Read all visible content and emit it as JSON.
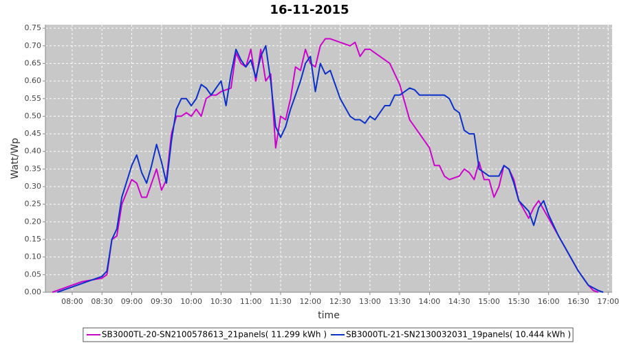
{
  "chart_data": {
    "type": "line",
    "title": "16-11-2015",
    "x_label": "time",
    "y_label": "Watt/Wp",
    "xlim": [
      "07:33",
      "17:04"
    ],
    "xticks": [
      "08:00",
      "08:30",
      "09:00",
      "09:30",
      "10:00",
      "10:30",
      "11:00",
      "11:30",
      "12:00",
      "12:30",
      "13:00",
      "13:30",
      "14:00",
      "14:30",
      "15:00",
      "15:30",
      "16:00",
      "16:30",
      "17:00"
    ],
    "ylim": [
      0,
      0.76
    ],
    "yticks": [
      {
        "value": 0,
        "label": "0.00"
      },
      {
        "value": 0.05,
        "label": "0.05"
      },
      {
        "value": 0.1,
        "label": "0.10"
      },
      {
        "value": 0.15,
        "label": "0.15"
      },
      {
        "value": 0.2,
        "label": "0.20"
      },
      {
        "value": 0.25,
        "label": "0.25"
      },
      {
        "value": 0.3,
        "label": "0.30"
      },
      {
        "value": 0.35,
        "label": "0.35"
      },
      {
        "value": 0.4,
        "label": "0.40"
      },
      {
        "value": 0.45,
        "label": "0.45"
      },
      {
        "value": 0.5,
        "label": "0.50"
      },
      {
        "value": 0.55,
        "label": "0.55"
      },
      {
        "value": 0.6,
        "label": "0.60"
      },
      {
        "value": 0.65,
        "label": "0.65"
      },
      {
        "value": 0.7,
        "label": "0.70"
      },
      {
        "value": 0.75,
        "label": "0.75"
      }
    ],
    "grid": true,
    "legend": "bottom",
    "series": [
      {
        "name": "SB3000TL-20-SN2100578613_21panels( 11.299 kWh )",
        "color": "#cc00cc",
        "x": [
          "07:40",
          "07:50",
          "08:00",
          "08:10",
          "08:20",
          "08:30",
          "08:35",
          "08:40",
          "08:45",
          "08:50",
          "09:00",
          "09:05",
          "09:10",
          "09:15",
          "09:20",
          "09:25",
          "09:30",
          "09:35",
          "09:40",
          "09:45",
          "09:50",
          "09:55",
          "10:00",
          "10:05",
          "10:10",
          "10:15",
          "10:20",
          "10:25",
          "10:30",
          "10:40",
          "10:45",
          "10:50",
          "10:55",
          "11:00",
          "11:05",
          "11:10",
          "11:15",
          "11:20",
          "11:25",
          "11:30",
          "11:35",
          "11:40",
          "11:45",
          "11:50",
          "11:55",
          "12:00",
          "12:05",
          "12:10",
          "12:15",
          "12:20",
          "12:30",
          "12:40",
          "12:45",
          "12:50",
          "12:55",
          "13:00",
          "13:10",
          "13:20",
          "13:25",
          "13:30",
          "13:40",
          "13:50",
          "14:00",
          "14:05",
          "14:10",
          "14:15",
          "14:20",
          "14:30",
          "14:35",
          "14:40",
          "14:45",
          "14:50",
          "14:55",
          "15:00",
          "15:05",
          "15:10",
          "15:15",
          "15:20",
          "15:25",
          "15:30",
          "15:40",
          "15:45",
          "15:50",
          "16:00",
          "16:10",
          "16:20",
          "16:30",
          "16:40",
          "16:45",
          "16:50"
        ],
        "values": [
          0,
          0.01,
          0.02,
          0.03,
          0.035,
          0.04,
          0.05,
          0.15,
          0.16,
          0.25,
          0.32,
          0.31,
          0.27,
          0.27,
          0.31,
          0.35,
          0.29,
          0.32,
          0.45,
          0.5,
          0.5,
          0.51,
          0.5,
          0.52,
          0.5,
          0.55,
          0.56,
          0.56,
          0.57,
          0.58,
          0.68,
          0.65,
          0.64,
          0.69,
          0.6,
          0.69,
          0.6,
          0.62,
          0.41,
          0.5,
          0.49,
          0.55,
          0.64,
          0.63,
          0.69,
          0.65,
          0.64,
          0.7,
          0.72,
          0.72,
          0.71,
          0.7,
          0.71,
          0.67,
          0.69,
          0.69,
          0.67,
          0.65,
          0.62,
          0.59,
          0.49,
          0.45,
          0.41,
          0.36,
          0.36,
          0.33,
          0.32,
          0.33,
          0.35,
          0.34,
          0.32,
          0.37,
          0.32,
          0.32,
          0.27,
          0.3,
          0.36,
          0.35,
          0.32,
          0.26,
          0.21,
          0.24,
          0.26,
          0.21,
          0.16,
          0.11,
          0.06,
          0.02,
          0.005,
          0
        ]
      },
      {
        "name": "SB3000TL-21-SN2130032031_19panels( 10.444 kWh )",
        "color": "#0a30c8",
        "x": [
          "07:45",
          "07:55",
          "08:00",
          "08:10",
          "08:20",
          "08:30",
          "08:35",
          "08:40",
          "08:45",
          "08:50",
          "09:00",
          "09:05",
          "09:10",
          "09:15",
          "09:20",
          "09:25",
          "09:30",
          "09:35",
          "09:40",
          "09:45",
          "09:50",
          "09:55",
          "10:00",
          "10:05",
          "10:10",
          "10:15",
          "10:20",
          "10:25",
          "10:30",
          "10:35",
          "10:40",
          "10:45",
          "10:50",
          "10:55",
          "11:00",
          "11:05",
          "11:10",
          "11:15",
          "11:20",
          "11:25",
          "11:30",
          "11:35",
          "11:40",
          "11:45",
          "11:50",
          "11:55",
          "12:00",
          "12:05",
          "12:10",
          "12:15",
          "12:20",
          "12:25",
          "12:30",
          "12:40",
          "12:45",
          "12:50",
          "12:55",
          "13:00",
          "13:05",
          "13:10",
          "13:15",
          "13:20",
          "13:25",
          "13:30",
          "13:40",
          "13:45",
          "13:50",
          "14:00",
          "14:10",
          "14:15",
          "14:20",
          "14:25",
          "14:30",
          "14:35",
          "14:40",
          "14:45",
          "14:50",
          "15:00",
          "15:10",
          "15:15",
          "15:20",
          "15:25",
          "15:30",
          "15:40",
          "15:45",
          "15:50",
          "15:55",
          "16:00",
          "16:10",
          "16:20",
          "16:30",
          "16:40",
          "16:50",
          "16:55"
        ],
        "values": [
          0,
          0.01,
          0.015,
          0.025,
          0.035,
          0.045,
          0.06,
          0.15,
          0.18,
          0.27,
          0.36,
          0.39,
          0.34,
          0.31,
          0.36,
          0.42,
          0.37,
          0.31,
          0.43,
          0.52,
          0.55,
          0.55,
          0.53,
          0.55,
          0.59,
          0.58,
          0.56,
          0.58,
          0.6,
          0.53,
          0.62,
          0.69,
          0.66,
          0.64,
          0.66,
          0.61,
          0.67,
          0.7,
          0.6,
          0.47,
          0.44,
          0.47,
          0.52,
          0.56,
          0.6,
          0.65,
          0.67,
          0.57,
          0.65,
          0.62,
          0.63,
          0.59,
          0.55,
          0.5,
          0.49,
          0.49,
          0.48,
          0.5,
          0.49,
          0.51,
          0.53,
          0.53,
          0.56,
          0.56,
          0.58,
          0.575,
          0.56,
          0.56,
          0.56,
          0.56,
          0.55,
          0.52,
          0.51,
          0.46,
          0.45,
          0.45,
          0.35,
          0.33,
          0.33,
          0.36,
          0.35,
          0.31,
          0.26,
          0.23,
          0.19,
          0.24,
          0.26,
          0.22,
          0.16,
          0.11,
          0.06,
          0.02,
          0.005,
          0
        ]
      }
    ]
  }
}
